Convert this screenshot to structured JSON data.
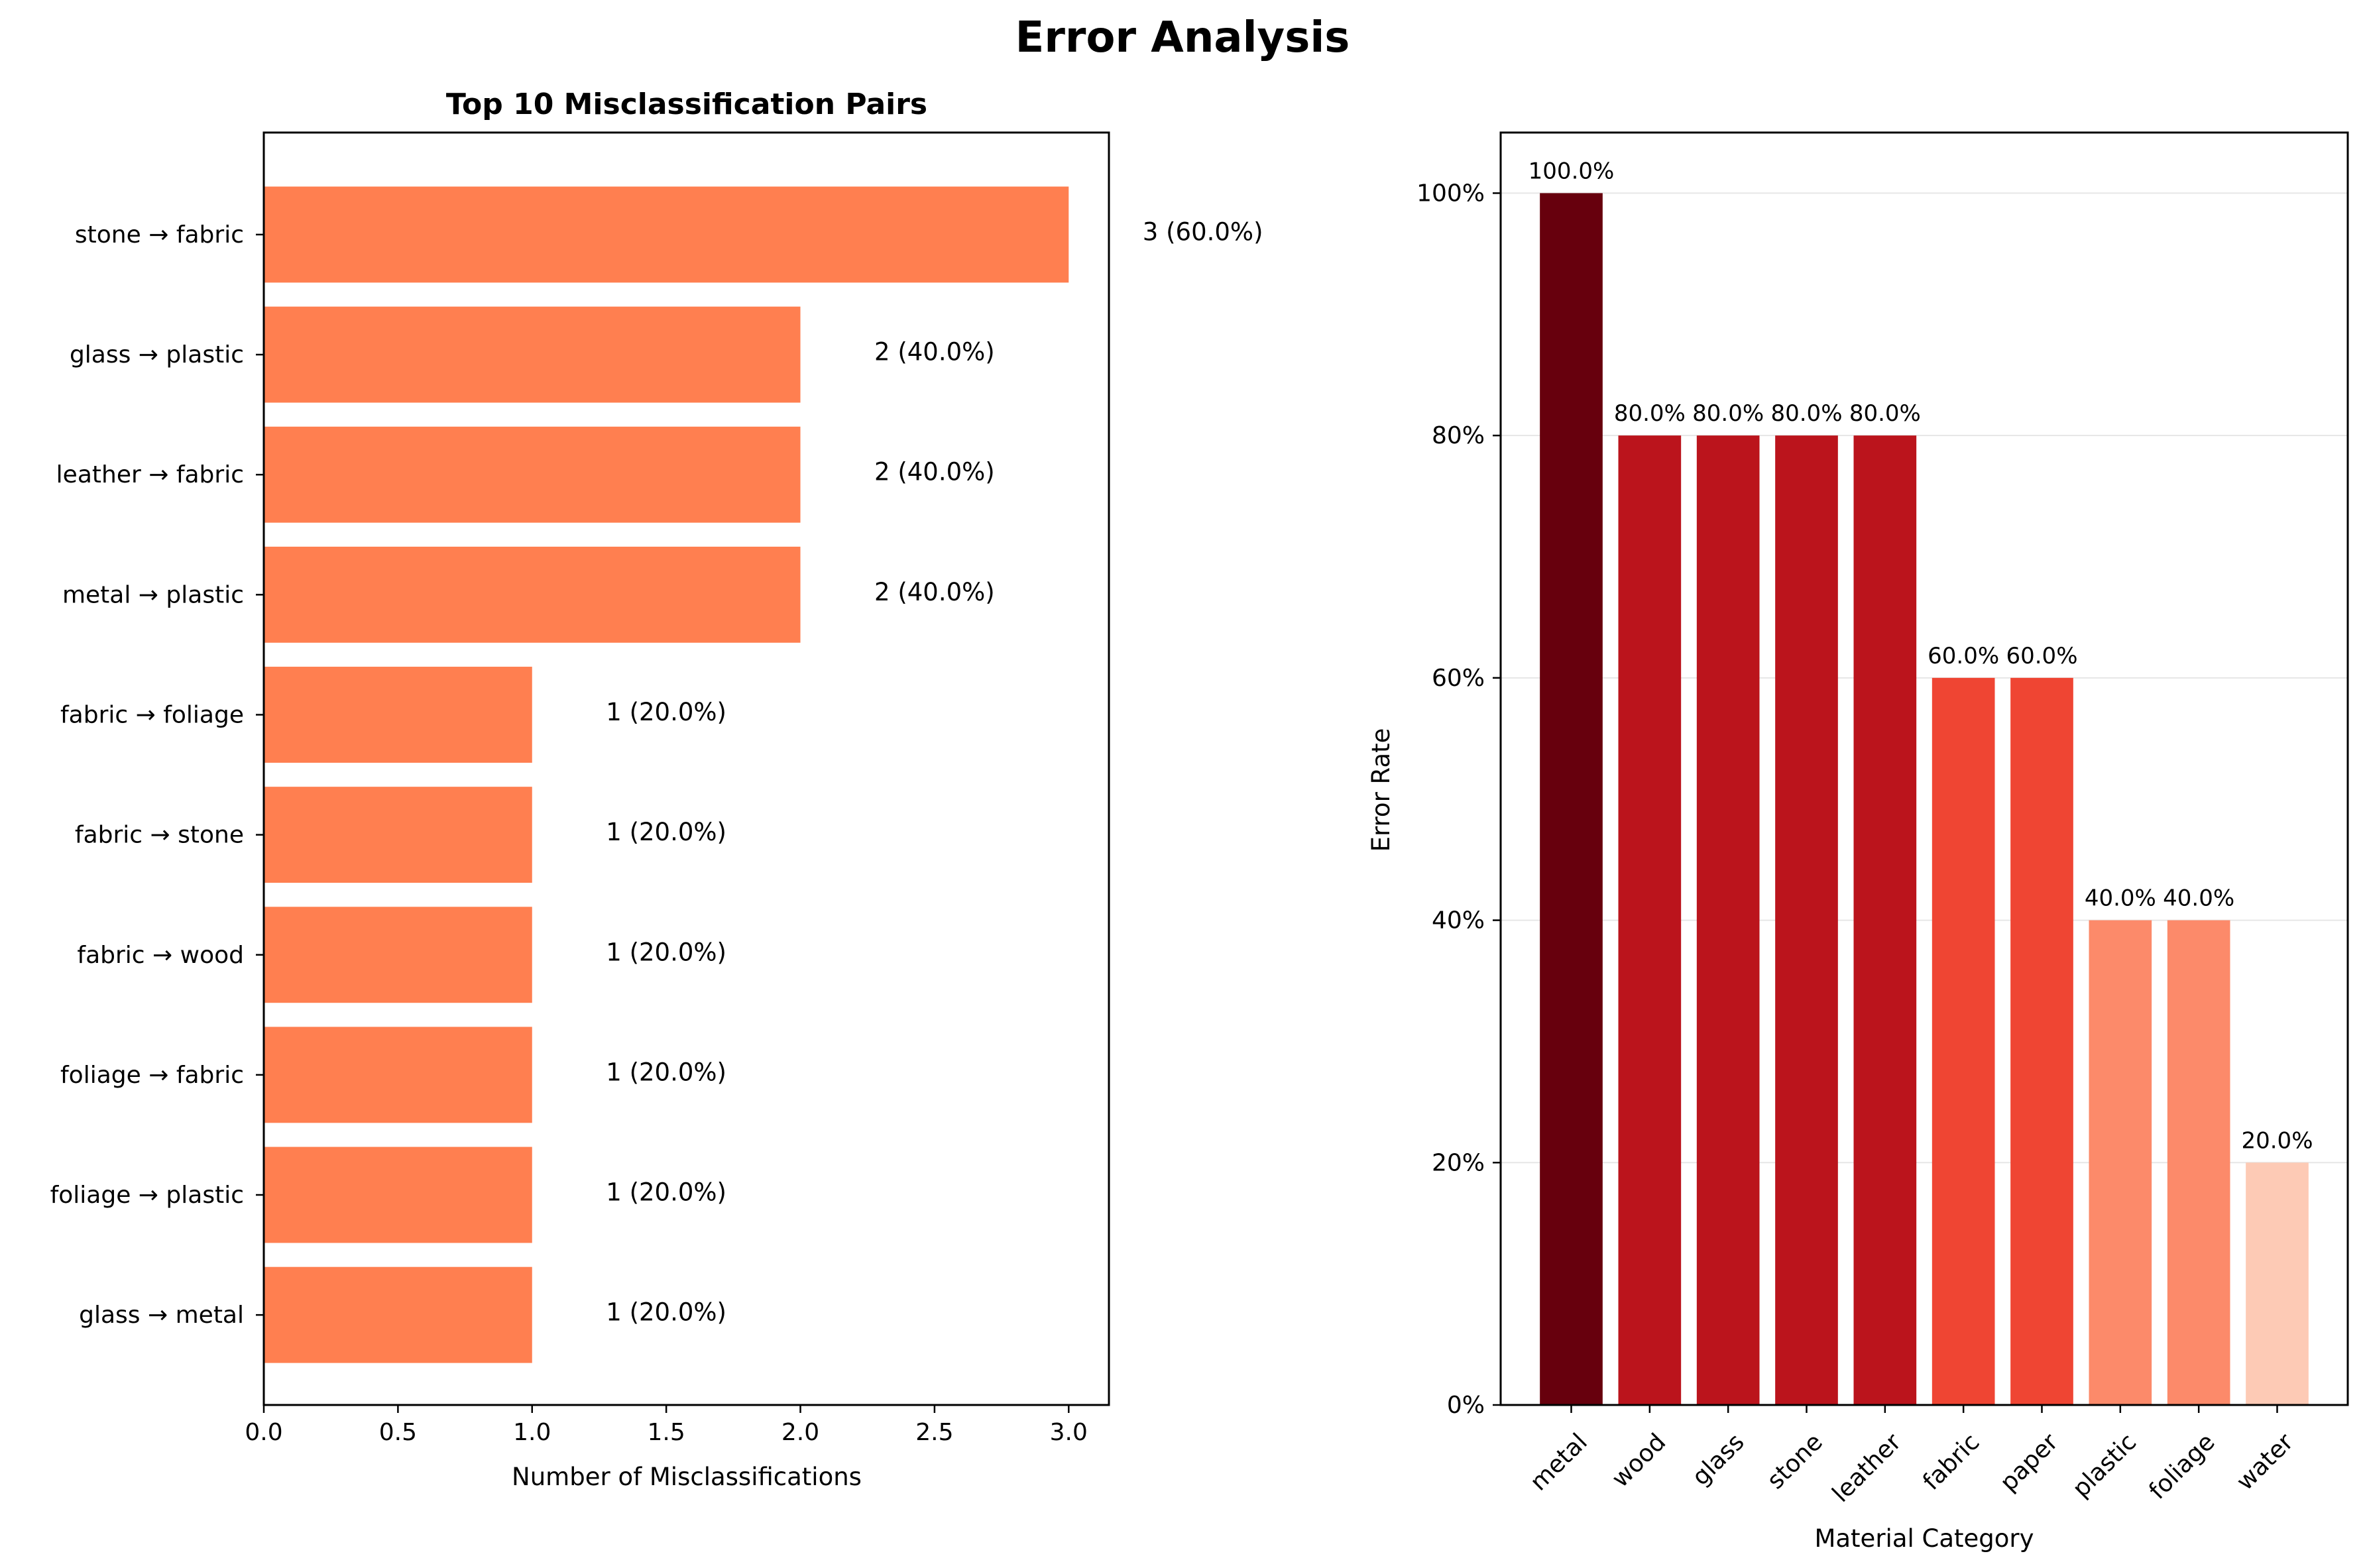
{
  "figure": {
    "title": "Error Analysis"
  },
  "chart_data": [
    {
      "type": "bar",
      "orientation": "horizontal",
      "title": "Top 10 Misclassification Pairs",
      "xlabel": "Number of Misclassifications",
      "ylabel": "",
      "xlim": [
        0,
        3.15
      ],
      "xticks": [
        "0.0",
        "0.5",
        "1.0",
        "1.5",
        "2.0",
        "2.5",
        "3.0"
      ],
      "grid": false,
      "bar_color": "#ff7f50",
      "categories": [
        "stone → fabric",
        "glass → plastic",
        "leather → fabric",
        "metal → plastic",
        "fabric → foliage",
        "fabric → stone",
        "fabric → wood",
        "foliage → fabric",
        "foliage → plastic",
        "glass → metal"
      ],
      "values": [
        3,
        2,
        2,
        2,
        1,
        1,
        1,
        1,
        1,
        1
      ],
      "data_labels": [
        "3 (60.0%)",
        "2 (40.0%)",
        "2 (40.0%)",
        "2 (40.0%)",
        "1 (20.0%)",
        "1 (20.0%)",
        "1 (20.0%)",
        "1 (20.0%)",
        "1 (20.0%)",
        "1 (20.0%)"
      ]
    },
    {
      "type": "bar",
      "orientation": "vertical",
      "title": "",
      "xlabel": "Material Category",
      "ylabel": "Error Rate",
      "ylim": [
        0,
        1.05
      ],
      "yticks": [
        "0%",
        "20%",
        "40%",
        "60%",
        "80%",
        "100%"
      ],
      "grid": true,
      "categories": [
        "metal",
        "wood",
        "glass",
        "stone",
        "leather",
        "fabric",
        "paper",
        "plastic",
        "foliage",
        "water"
      ],
      "values": [
        1.0,
        0.8,
        0.8,
        0.8,
        0.8,
        0.6,
        0.6,
        0.4,
        0.4,
        0.2
      ],
      "data_labels": [
        "100.0%",
        "80.0%",
        "80.0%",
        "80.0%",
        "80.0%",
        "60.0%",
        "60.0%",
        "40.0%",
        "40.0%",
        "20.0%"
      ],
      "colors": [
        "#67000d",
        "#bb141c",
        "#bb141c",
        "#bb141c",
        "#bb141c",
        "#ef4533",
        "#ef4533",
        "#fc8a6a",
        "#fc8a6a",
        "#fdcab5"
      ]
    }
  ]
}
